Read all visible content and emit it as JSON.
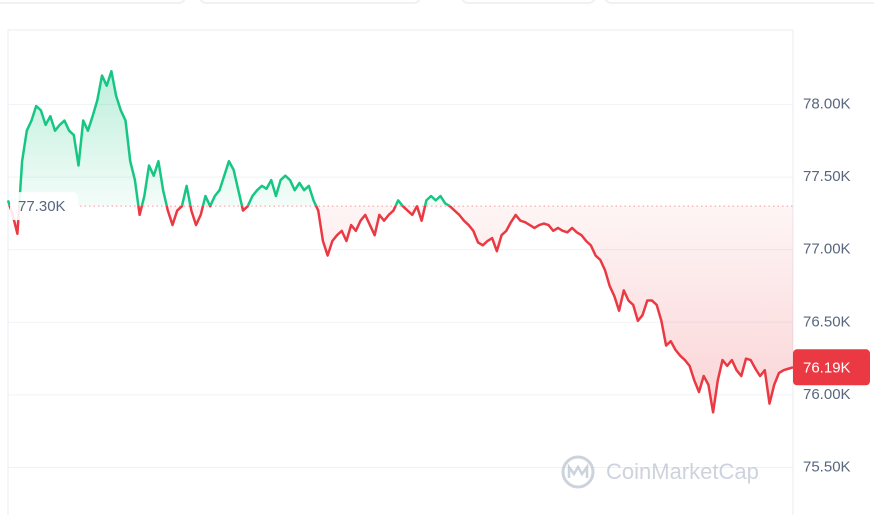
{
  "chart_data": {
    "type": "line",
    "values": [
      77.34,
      77.24,
      77.11,
      77.61,
      77.82,
      77.89,
      77.99,
      77.96,
      77.86,
      77.92,
      77.82,
      77.86,
      77.89,
      77.82,
      77.79,
      77.58,
      77.89,
      77.82,
      77.92,
      78.03,
      78.2,
      78.13,
      78.23,
      78.06,
      77.96,
      77.89,
      77.61,
      77.48,
      77.24,
      77.37,
      77.58,
      77.51,
      77.61,
      77.41,
      77.27,
      77.17,
      77.27,
      77.3,
      77.44,
      77.27,
      77.17,
      77.24,
      77.37,
      77.3,
      77.37,
      77.41,
      77.51,
      77.61,
      77.55,
      77.41,
      77.27,
      77.3,
      77.37,
      77.41,
      77.44,
      77.42,
      77.48,
      77.37,
      77.48,
      77.51,
      77.48,
      77.41,
      77.46,
      77.41,
      77.44,
      77.34,
      77.27,
      77.06,
      76.96,
      77.06,
      77.1,
      77.13,
      77.06,
      77.17,
      77.13,
      77.2,
      77.24,
      77.17,
      77.1,
      77.24,
      77.2,
      77.24,
      77.27,
      77.34,
      77.3,
      77.27,
      77.24,
      77.3,
      77.2,
      77.34,
      77.37,
      77.34,
      77.37,
      77.32,
      77.3,
      77.27,
      77.24,
      77.2,
      77.17,
      77.13,
      77.05,
      77.03,
      77.06,
      77.08,
      76.99,
      77.1,
      77.13,
      77.19,
      77.24,
      77.2,
      77.19,
      77.17,
      77.15,
      77.17,
      77.18,
      77.17,
      77.13,
      77.15,
      77.13,
      77.12,
      77.15,
      77.12,
      77.1,
      77.06,
      77.03,
      76.96,
      76.93,
      76.86,
      76.75,
      76.68,
      76.58,
      76.72,
      76.65,
      76.62,
      76.51,
      76.55,
      76.65,
      76.65,
      76.62,
      76.51,
      76.34,
      76.37,
      76.31,
      76.27,
      76.24,
      76.2,
      76.1,
      76.02,
      76.13,
      76.07,
      75.88,
      76.1,
      76.24,
      76.2,
      76.24,
      76.17,
      76.13,
      76.25,
      76.24,
      76.18,
      76.13,
      76.17,
      75.94,
      76.07,
      76.15,
      76.17,
      76.18,
      76.19
    ],
    "baseline": {
      "value": 77.3,
      "label": "77.30K"
    },
    "last_price": {
      "value": 76.19,
      "label": "76.19K"
    },
    "up_color": "#16c784",
    "down_color": "#ea3943",
    "ylim": [
      75.2,
      78.5
    ],
    "yticks": [
      {
        "value": 75.5,
        "label": "75.50K"
      },
      {
        "value": 76,
        "label": "76.00K"
      },
      {
        "value": 76.5,
        "label": "76.50K"
      },
      {
        "value": 77,
        "label": "77.00K"
      },
      {
        "value": 77.5,
        "label": "77.50K"
      },
      {
        "value": 78,
        "label": "78.00K"
      }
    ],
    "grid": true,
    "watermark": "CoinMarketCap"
  }
}
